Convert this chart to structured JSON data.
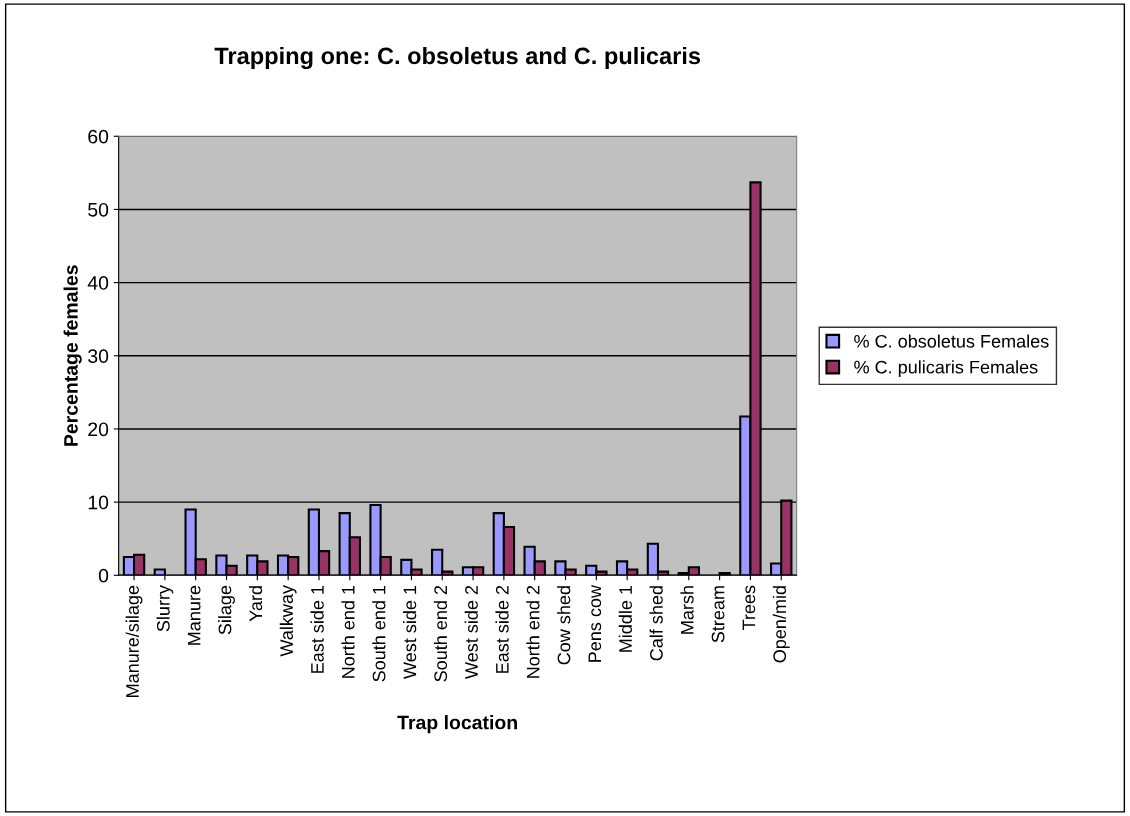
{
  "chart_data": {
    "type": "bar",
    "title": "Trapping one: C. obsoletus and C. pulicaris",
    "xlabel": "Trap location",
    "ylabel": "Percentage females",
    "categories": [
      "Manure/silage",
      "Slurry",
      "Manure",
      "Silage",
      "Yard",
      "Walkway",
      "East side 1",
      "North end 1",
      "South end 1",
      "West side 1",
      "South end 2",
      "West side 2",
      "East side 2",
      "North end 2",
      "Cow shed",
      "Pens cow",
      "Middle 1",
      "Calf shed",
      "Marsh",
      "Stream",
      "Trees",
      "Open/mid"
    ],
    "series": [
      {
        "name": "% C. obsoletus Females",
        "color": "#9999ff",
        "values": [
          2.5,
          0.8,
          9.0,
          2.7,
          2.7,
          2.7,
          9.0,
          8.5,
          9.6,
          2.1,
          3.5,
          1.1,
          8.5,
          3.9,
          1.9,
          1.3,
          1.9,
          4.3,
          0.3,
          null,
          21.7,
          1.6
        ]
      },
      {
        "name": "% C. pulicaris Females",
        "color": "#993366",
        "values": [
          2.8,
          null,
          2.2,
          1.3,
          1.9,
          2.5,
          3.3,
          5.2,
          2.5,
          0.8,
          0.5,
          1.1,
          6.6,
          1.9,
          0.8,
          0.5,
          0.8,
          0.5,
          1.1,
          0.3,
          53.7,
          10.2
        ]
      }
    ],
    "ylim": [
      0,
      60
    ],
    "yticks": [
      0,
      10,
      20,
      30,
      40,
      50,
      60
    ],
    "grid": "y",
    "legend": "right"
  }
}
